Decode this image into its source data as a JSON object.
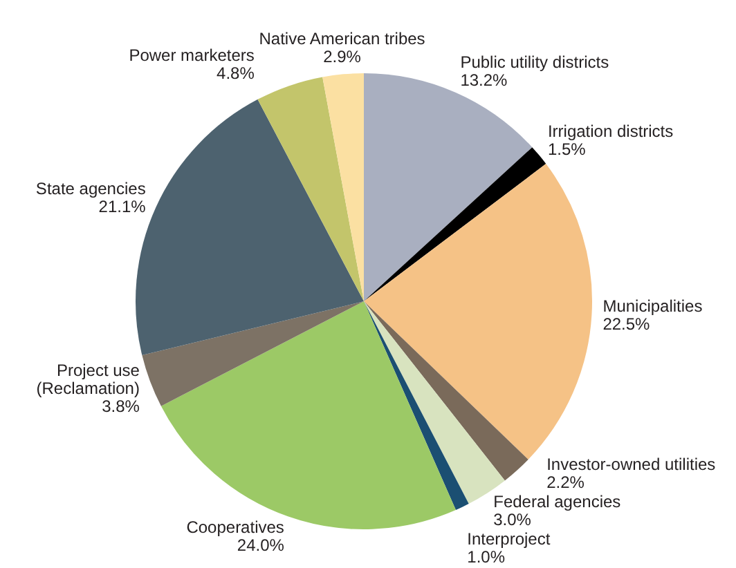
{
  "chart_data": {
    "type": "pie",
    "categories": [
      "Public utility districts",
      "Irrigation districts",
      "Municipalities",
      "Investor-owned utilities",
      "Federal agencies",
      "Interproject",
      "Cooperatives",
      "Project use (Reclamation)",
      "State agencies",
      "Power marketers",
      "Native American tribes"
    ],
    "values": [
      13.2,
      1.5,
      22.5,
      2.2,
      3.0,
      1.0,
      24.0,
      3.8,
      21.1,
      4.8,
      2.9
    ],
    "value_labels": [
      "13.2%",
      "1.5%",
      "22.5%",
      "2.2%",
      "3.0%",
      "1.0%",
      "24.0%",
      "3.8%",
      "21.1%",
      "4.8%",
      "2.9%"
    ],
    "colors": [
      "#a9afc0",
      "#000000",
      "#f5c286",
      "#7a6a5a",
      "#d8e3bf",
      "#1b4f72",
      "#9cc966",
      "#7d7265",
      "#4d626f",
      "#c3c56b",
      "#fbe0a2"
    ],
    "legend": false
  }
}
